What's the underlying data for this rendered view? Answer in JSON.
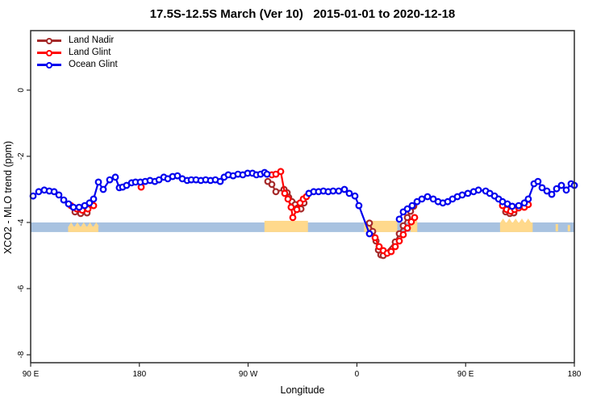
{
  "title": "17.5S-12.5S March (Ver 10)   2015-01-01 to 2020-12-18",
  "chart_data": {
    "type": "line",
    "title": "17.5S-12.5S March (Ver 10)   2015-01-01 to 2020-12-18",
    "xlabel": "Longitude",
    "ylabel": "XCO2 - MLO trend (ppm)",
    "xlim": [
      90,
      540
    ],
    "ylim": [
      -8.24,
      1.8
    ],
    "grid": false,
    "legend_position": "top-left",
    "x_ticks": [
      {
        "pos": 90,
        "label": "90 E"
      },
      {
        "pos": 180,
        "label": "180"
      },
      {
        "pos": 270,
        "label": "90 W"
      },
      {
        "pos": 360,
        "label": "0"
      },
      {
        "pos": 450,
        "label": "90 E"
      },
      {
        "pos": 540,
        "label": "180"
      }
    ],
    "y_ticks": [
      {
        "pos": 0,
        "label": "0"
      },
      {
        "pos": -2,
        "label": "-2"
      },
      {
        "pos": -4,
        "label": "-4"
      },
      {
        "pos": -6,
        "label": "-6"
      },
      {
        "pos": -8,
        "label": "-8"
      }
    ],
    "series": [
      {
        "name": "Land Nadir",
        "color": "#A52A2A",
        "marker": "open-circle",
        "segments": [
          [
            [
              126.7,
              -3.68
            ],
            [
              131.4,
              -3.73
            ],
            [
              136.7,
              -3.71
            ]
          ],
          [
            [
              286.3,
              -2.76
            ],
            [
              289.6,
              -2.85
            ],
            [
              293,
              -3.07
            ],
            [
              299.7,
              -3.0
            ],
            [
              302.3,
              -3.1
            ],
            [
              303.6,
              -3.24
            ],
            [
              306.3,
              -3.37
            ],
            [
              309,
              -3.46
            ],
            [
              311,
              -3.56
            ],
            [
              313.7,
              -3.59
            ],
            [
              316.3,
              -3.41
            ]
          ],
          [
            [
              370.4,
              -4.02
            ],
            [
              373.1,
              -4.27
            ],
            [
              375.8,
              -4.56
            ],
            [
              377.8,
              -4.83
            ],
            [
              379.8,
              -4.98
            ],
            [
              381.8,
              -5.0
            ],
            [
              391.8,
              -4.59
            ],
            [
              395.1,
              -4.34
            ],
            [
              398.4,
              -4.1
            ],
            [
              401.8,
              -3.85
            ],
            [
              404.4,
              -3.66
            ],
            [
              407.1,
              -3.51
            ]
          ],
          [
            [
              483.2,
              -3.68
            ],
            [
              486.6,
              -3.73
            ],
            [
              489.9,
              -3.71
            ]
          ]
        ]
      },
      {
        "name": "Land Glint",
        "color": "#FF0000",
        "marker": "open-circle",
        "segments": [
          [
            [
              123.4,
              -3.49
            ],
            [
              128.1,
              -3.59
            ],
            [
              132.7,
              -3.63
            ],
            [
              137.4,
              -3.59
            ],
            [
              142.1,
              -3.49
            ]
          ],
          [
            [
              181.5,
              -2.93
            ]
          ],
          [
            [
              289.6,
              -2.56
            ],
            [
              293,
              -2.54
            ],
            [
              297,
              -2.46
            ],
            [
              300.3,
              -3.12
            ],
            [
              303,
              -3.29
            ],
            [
              305.6,
              -3.54
            ],
            [
              307,
              -3.85
            ],
            [
              310.3,
              -3.61
            ],
            [
              313,
              -3.41
            ],
            [
              315.7,
              -3.29
            ],
            [
              318.3,
              -3.22
            ]
          ],
          [
            [
              375.1,
              -4.46
            ],
            [
              378.4,
              -4.73
            ],
            [
              381.8,
              -4.85
            ],
            [
              385.1,
              -4.93
            ],
            [
              388.4,
              -4.88
            ],
            [
              391.8,
              -4.73
            ],
            [
              395.1,
              -4.56
            ],
            [
              398.4,
              -4.37
            ],
            [
              401.8,
              -4.17
            ],
            [
              405.1,
              -3.98
            ],
            [
              407.8,
              -3.85
            ]
          ],
          [
            [
              480.6,
              -3.49
            ],
            [
              483.9,
              -3.61
            ],
            [
              487.3,
              -3.66
            ],
            [
              490.6,
              -3.61
            ],
            [
              493.9,
              -3.56
            ],
            [
              498.6,
              -3.54
            ],
            [
              501.9,
              -3.46
            ]
          ]
        ]
      },
      {
        "name": "Ocean Glint",
        "color": "#0000EE",
        "marker": "open-circle",
        "segments": [
          [
            [
              92,
              -3.2
            ],
            [
              96.7,
              -3.07
            ],
            [
              101.3,
              -3.02
            ],
            [
              105.4,
              -3.05
            ],
            [
              109.4,
              -3.07
            ],
            [
              113.4,
              -3.17
            ],
            [
              117.4,
              -3.32
            ],
            [
              121.4,
              -3.44
            ],
            [
              125.4,
              -3.54
            ],
            [
              130.1,
              -3.54
            ],
            [
              134.7,
              -3.49
            ],
            [
              138.7,
              -3.41
            ],
            [
              142.1,
              -3.29
            ],
            [
              146.1,
              -2.78
            ],
            [
              150.1,
              -3.0
            ],
            [
              155.4,
              -2.71
            ],
            [
              160.1,
              -2.63
            ],
            [
              163.4,
              -2.95
            ],
            [
              166.1,
              -2.93
            ],
            [
              169.4,
              -2.88
            ],
            [
              173.5,
              -2.8
            ],
            [
              176.8,
              -2.78
            ],
            [
              180.8,
              -2.78
            ],
            [
              184.8,
              -2.76
            ],
            [
              188.8,
              -2.73
            ],
            [
              192.8,
              -2.76
            ],
            [
              196.2,
              -2.71
            ],
            [
              200.2,
              -2.63
            ],
            [
              203.5,
              -2.68
            ],
            [
              207.5,
              -2.61
            ],
            [
              211.5,
              -2.59
            ],
            [
              215.5,
              -2.68
            ],
            [
              219.5,
              -2.73
            ],
            [
              222.9,
              -2.71
            ],
            [
              226.9,
              -2.71
            ],
            [
              230.9,
              -2.73
            ],
            [
              234.9,
              -2.71
            ],
            [
              238.9,
              -2.73
            ],
            [
              242.9,
              -2.71
            ],
            [
              246.9,
              -2.76
            ],
            [
              250.2,
              -2.63
            ],
            [
              253.6,
              -2.56
            ],
            [
              257.6,
              -2.59
            ],
            [
              261.6,
              -2.54
            ],
            [
              265.6,
              -2.56
            ],
            [
              269.6,
              -2.51
            ],
            [
              273.6,
              -2.51
            ],
            [
              276.9,
              -2.56
            ],
            [
              280.3,
              -2.54
            ],
            [
              283.6,
              -2.49
            ],
            [
              285.6,
              -2.54
            ]
          ],
          [
            [
              320.3,
              -3.12
            ],
            [
              324.3,
              -3.07
            ],
            [
              328.3,
              -3.07
            ],
            [
              332.3,
              -3.05
            ],
            [
              336.3,
              -3.07
            ],
            [
              340.4,
              -3.05
            ],
            [
              345,
              -3.05
            ],
            [
              349.7,
              -3.0
            ],
            [
              353.7,
              -3.12
            ],
            [
              358.4,
              -3.2
            ],
            [
              361.7,
              -3.49
            ],
            [
              370.4,
              -4.34
            ]
          ],
          [
            [
              395.1,
              -3.9
            ],
            [
              398.4,
              -3.68
            ],
            [
              401.8,
              -3.59
            ],
            [
              405.8,
              -3.49
            ],
            [
              409.8,
              -3.37
            ],
            [
              413.8,
              -3.29
            ],
            [
              418.5,
              -3.22
            ],
            [
              423.2,
              -3.29
            ],
            [
              427.2,
              -3.37
            ],
            [
              431.2,
              -3.41
            ],
            [
              435.2,
              -3.37
            ],
            [
              439.2,
              -3.29
            ],
            [
              443.2,
              -3.22
            ],
            [
              447.2,
              -3.17
            ],
            [
              451.9,
              -3.12
            ],
            [
              456.6,
              -3.07
            ],
            [
              460.6,
              -3.02
            ],
            [
              466.6,
              -3.05
            ],
            [
              470,
              -3.12
            ],
            [
              474,
              -3.2
            ],
            [
              477.3,
              -3.29
            ],
            [
              480.6,
              -3.37
            ],
            [
              484.6,
              -3.44
            ],
            [
              488.6,
              -3.51
            ],
            [
              493.9,
              -3.49
            ],
            [
              498.6,
              -3.41
            ],
            [
              501.9,
              -3.29
            ],
            [
              506.6,
              -2.83
            ],
            [
              509.9,
              -2.76
            ],
            [
              513.3,
              -2.95
            ],
            [
              517.3,
              -3.05
            ],
            [
              521.3,
              -3.15
            ],
            [
              525.3,
              -2.98
            ],
            [
              529.3,
              -2.88
            ],
            [
              533.3,
              -3.02
            ],
            [
              537.3,
              -2.83
            ],
            [
              540,
              -2.88
            ]
          ]
        ]
      }
    ],
    "map_strip": {
      "ocean_color": "#A8C2E0",
      "land_color": "#FFD98C",
      "ocean_band": {
        "from": 90,
        "to": 540,
        "top": -4.0,
        "bottom": -4.29
      },
      "land_patches": [
        {
          "from": 121,
          "to": 146,
          "top": -4.12,
          "bottom": -4.29,
          "jagged": true
        },
        {
          "from": 283.5,
          "to": 319.5,
          "top": -3.95,
          "bottom": -4.29,
          "jagged": false
        },
        {
          "from": 366,
          "to": 393.5,
          "top": -3.95,
          "bottom": -4.29,
          "jagged": false
        },
        {
          "from": 404.5,
          "to": 410,
          "top": -3.95,
          "bottom": -4.29,
          "jagged": false
        },
        {
          "from": 478.5,
          "to": 505.5,
          "top": -4.0,
          "bottom": -4.29,
          "jagged": true
        },
        {
          "from": 524.5,
          "to": 526.5,
          "top": -4.05,
          "bottom": -4.27,
          "jagged": false
        },
        {
          "from": 534.5,
          "to": 536.5,
          "top": -4.08,
          "bottom": -4.27,
          "jagged": false
        }
      ]
    }
  }
}
